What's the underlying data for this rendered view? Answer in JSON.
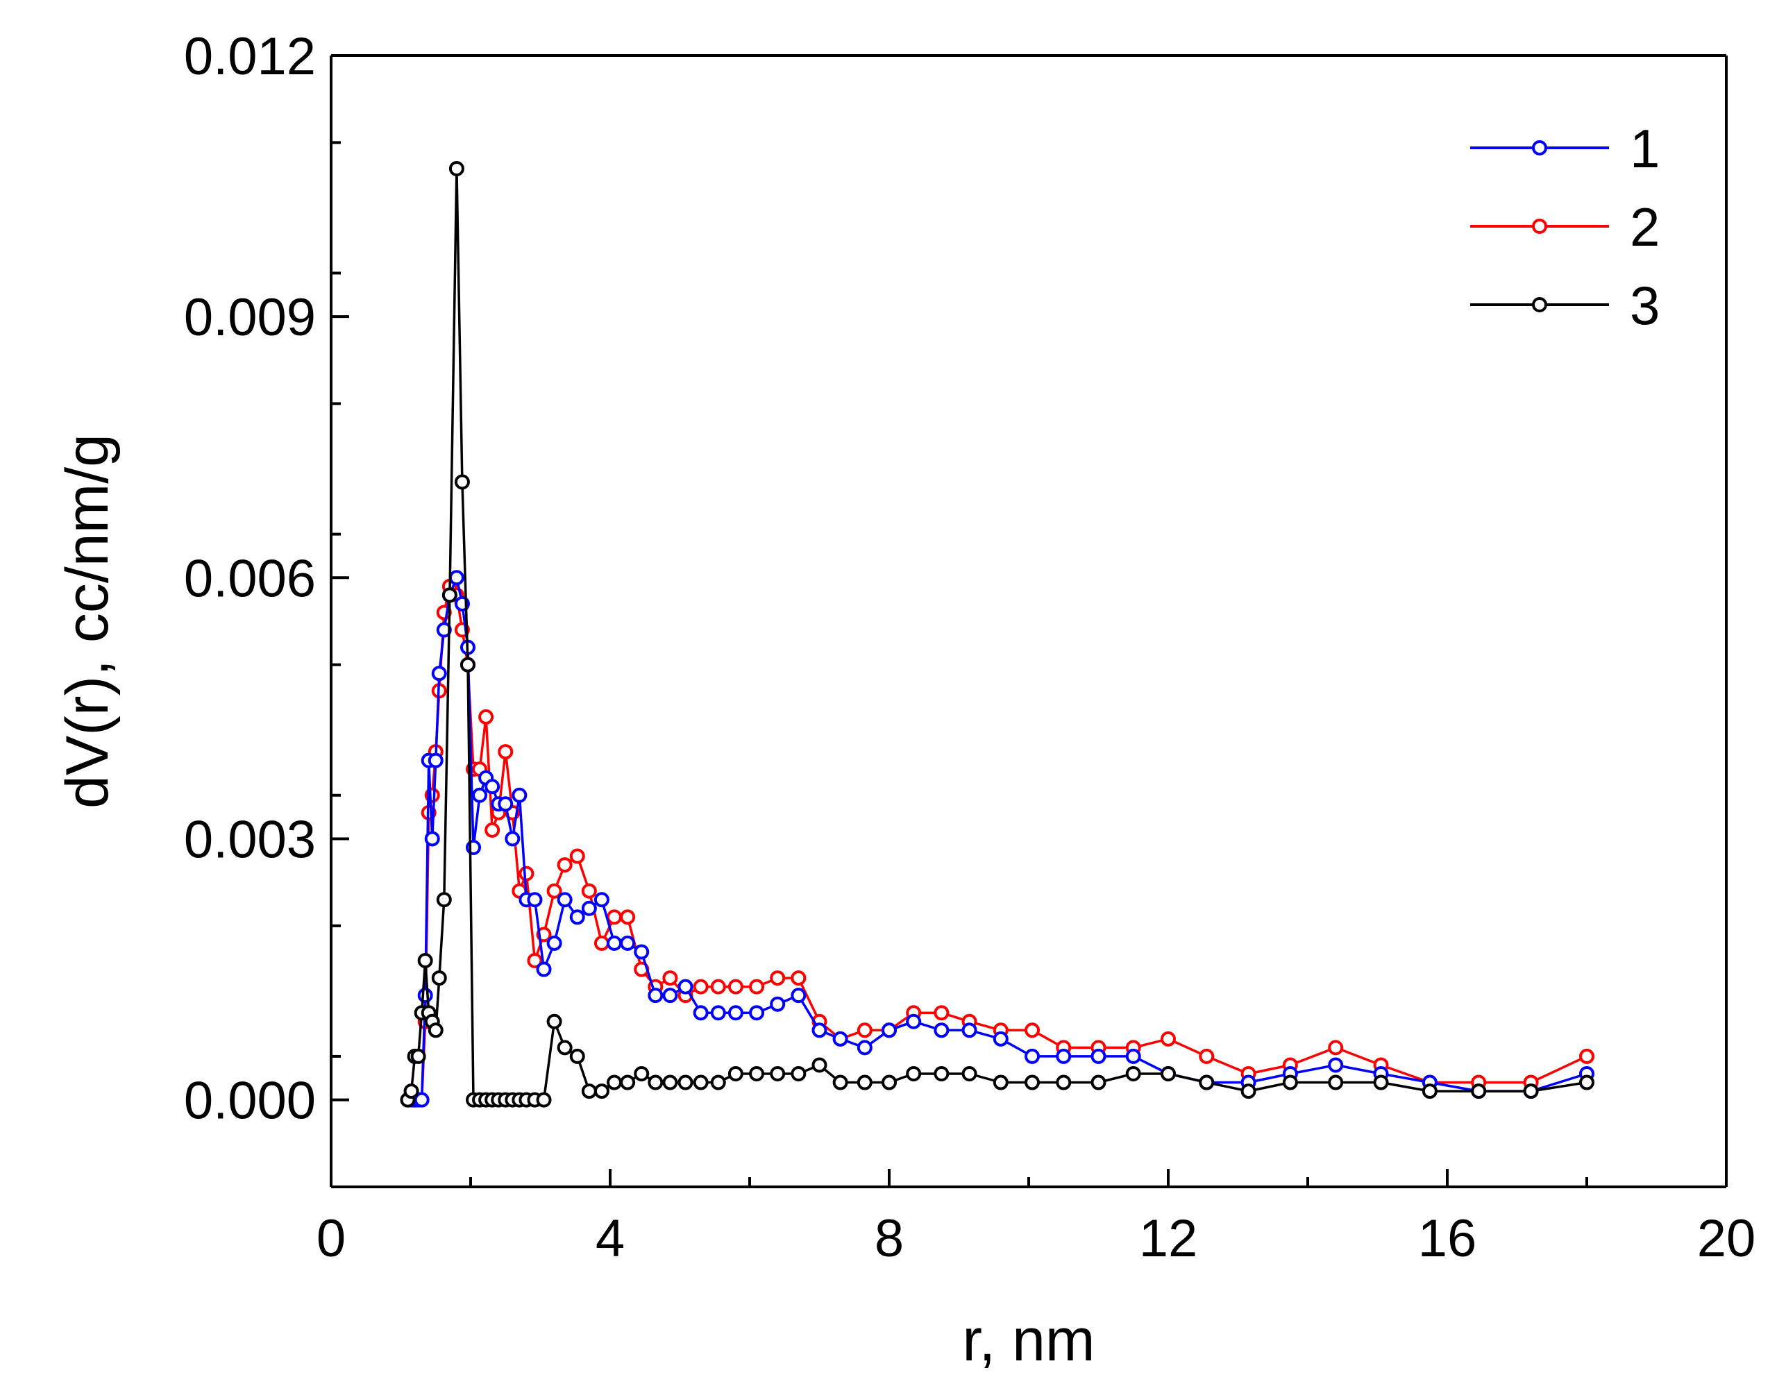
{
  "chart_data": {
    "type": "line",
    "title": "",
    "xlabel": "r, nm",
    "ylabel": "dV(r), cc/nm/g",
    "xlim": [
      0,
      20
    ],
    "ylim": [
      -0.001,
      0.012
    ],
    "xticks": [
      0,
      4,
      8,
      12,
      16,
      20
    ],
    "xtick_labels": [
      "0",
      "4",
      "8",
      "12",
      "16",
      "20"
    ],
    "yticks": [
      0.0,
      0.003,
      0.006,
      0.009,
      0.012
    ],
    "ytick_labels": [
      "0.000",
      "0.003",
      "0.006",
      "0.009",
      "0.012"
    ],
    "grid": false,
    "legend_position": "top-right",
    "markers": "open-circle",
    "series": [
      {
        "name": "1",
        "color": "#0000ff",
        "x": [
          1.1,
          1.15,
          1.2,
          1.25,
          1.3,
          1.35,
          1.4,
          1.45,
          1.5,
          1.55,
          1.62,
          1.7,
          1.8,
          1.88,
          1.96,
          2.04,
          2.13,
          2.22,
          2.31,
          2.4,
          2.5,
          2.6,
          2.7,
          2.8,
          2.92,
          3.05,
          3.2,
          3.35,
          3.53,
          3.7,
          3.88,
          4.06,
          4.25,
          4.45,
          4.65,
          4.86,
          5.08,
          5.3,
          5.55,
          5.8,
          6.1,
          6.4,
          6.7,
          7.0,
          7.3,
          7.65,
          8.0,
          8.35,
          8.75,
          9.15,
          9.6,
          10.05,
          10.5,
          11.0,
          11.5,
          12.0,
          12.55,
          13.15,
          13.75,
          14.4,
          15.05,
          15.75,
          16.45,
          17.2,
          18.0
        ],
        "values": [
          0.0,
          0.0,
          0.0,
          0.0,
          0.0,
          0.0012,
          0.0039,
          0.003,
          0.0039,
          0.0049,
          0.0054,
          0.0058,
          0.006,
          0.0057,
          0.0052,
          0.0029,
          0.0035,
          0.0037,
          0.0036,
          0.0034,
          0.0034,
          0.003,
          0.0035,
          0.0023,
          0.0023,
          0.0015,
          0.0018,
          0.0023,
          0.0021,
          0.0022,
          0.0023,
          0.0018,
          0.0018,
          0.0017,
          0.0012,
          0.0012,
          0.0013,
          0.001,
          0.001,
          0.001,
          0.001,
          0.0011,
          0.0012,
          0.0008,
          0.0007,
          0.0006,
          0.0008,
          0.0009,
          0.0008,
          0.0008,
          0.0007,
          0.0005,
          0.0005,
          0.0005,
          0.0005,
          0.0003,
          0.0002,
          0.0002,
          0.0003,
          0.0004,
          0.0003,
          0.0002,
          0.0001,
          0.0001,
          0.0003
        ]
      },
      {
        "name": "2",
        "color": "#ff0000",
        "x": [
          1.1,
          1.15,
          1.2,
          1.25,
          1.3,
          1.35,
          1.4,
          1.45,
          1.5,
          1.55,
          1.62,
          1.7,
          1.8,
          1.88,
          1.96,
          2.04,
          2.13,
          2.22,
          2.31,
          2.4,
          2.5,
          2.6,
          2.7,
          2.8,
          2.92,
          3.05,
          3.2,
          3.35,
          3.53,
          3.7,
          3.88,
          4.06,
          4.25,
          4.45,
          4.65,
          4.86,
          5.08,
          5.3,
          5.55,
          5.8,
          6.1,
          6.4,
          6.7,
          7.0,
          7.3,
          7.65,
          8.0,
          8.35,
          8.75,
          9.15,
          9.6,
          10.05,
          10.5,
          11.0,
          11.5,
          12.0,
          12.55,
          13.15,
          13.75,
          14.4,
          15.05,
          15.75,
          16.45,
          17.2,
          18.0
        ],
        "values": [
          0.0,
          0.0,
          0.0,
          0.0,
          0.0,
          0.0009,
          0.0033,
          0.0035,
          0.004,
          0.0047,
          0.0056,
          0.0059,
          0.0058,
          0.0054,
          0.005,
          0.0038,
          0.0038,
          0.0044,
          0.0031,
          0.0033,
          0.004,
          0.0033,
          0.0024,
          0.0026,
          0.0016,
          0.0019,
          0.0024,
          0.0027,
          0.0028,
          0.0024,
          0.0018,
          0.0021,
          0.0021,
          0.0015,
          0.0013,
          0.0014,
          0.0012,
          0.0013,
          0.0013,
          0.0013,
          0.0013,
          0.0014,
          0.0014,
          0.0009,
          0.0007,
          0.0008,
          0.0008,
          0.001,
          0.001,
          0.0009,
          0.0008,
          0.0008,
          0.0006,
          0.0006,
          0.0006,
          0.0007,
          0.0005,
          0.0003,
          0.0004,
          0.0006,
          0.0004,
          0.0002,
          0.0002,
          0.0002,
          0.0005
        ]
      },
      {
        "name": "3",
        "color": "#000000",
        "x": [
          1.1,
          1.15,
          1.2,
          1.25,
          1.3,
          1.35,
          1.4,
          1.45,
          1.5,
          1.55,
          1.62,
          1.7,
          1.8,
          1.88,
          1.96,
          2.04,
          2.13,
          2.22,
          2.31,
          2.4,
          2.5,
          2.6,
          2.7,
          2.8,
          2.92,
          3.05,
          3.2,
          3.35,
          3.53,
          3.7,
          3.88,
          4.06,
          4.25,
          4.45,
          4.65,
          4.86,
          5.08,
          5.3,
          5.55,
          5.8,
          6.1,
          6.4,
          6.7,
          7.0,
          7.3,
          7.65,
          8.0,
          8.35,
          8.75,
          9.15,
          9.6,
          10.05,
          10.5,
          11.0,
          11.5,
          12.0,
          12.55,
          13.15,
          13.75,
          14.4,
          15.05,
          15.75,
          16.45,
          17.2,
          18.0
        ],
        "values": [
          0.0,
          0.0001,
          0.0005,
          0.0005,
          0.001,
          0.0016,
          0.001,
          0.0009,
          0.0008,
          0.0014,
          0.0023,
          0.0058,
          0.0107,
          0.0071,
          0.005,
          0.0,
          0.0,
          0.0,
          0.0,
          0.0,
          0.0,
          0.0,
          0.0,
          0.0,
          0.0,
          0.0,
          0.0009,
          0.0006,
          0.0005,
          0.0001,
          0.0001,
          0.0002,
          0.0002,
          0.0003,
          0.0002,
          0.0002,
          0.0002,
          0.0002,
          0.0002,
          0.0003,
          0.0003,
          0.0003,
          0.0003,
          0.0004,
          0.0002,
          0.0002,
          0.0002,
          0.0003,
          0.0003,
          0.0003,
          0.0002,
          0.0002,
          0.0002,
          0.0002,
          0.0003,
          0.0003,
          0.0002,
          0.0001,
          0.0002,
          0.0002,
          0.0002,
          0.0001,
          0.0001,
          0.0001,
          0.0002
        ]
      }
    ]
  }
}
